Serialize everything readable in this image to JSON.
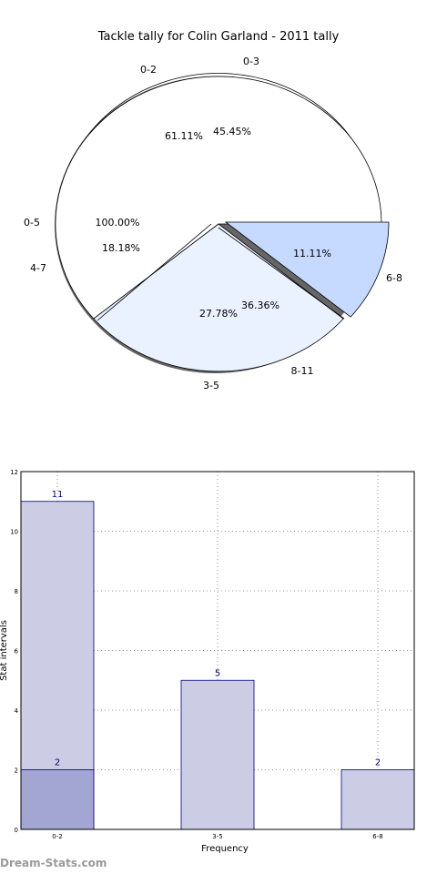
{
  "watermark": "Dream-Stats.com",
  "chart_data": [
    {
      "type": "pie",
      "title": "Tackle tally for Colin Garland - 2011 tally",
      "pies": [
        {
          "slices": [
            {
              "label": "0-2",
              "percent_label": "61.11%",
              "value": 61.11,
              "color": "#ffffff"
            },
            {
              "label": "3-5",
              "percent_label": "27.78%",
              "value": 27.78,
              "color": "#eaf1ff"
            },
            {
              "label": "6-8",
              "percent_label": "11.11%",
              "value": 11.11,
              "color": "#c6d9ff"
            }
          ]
        },
        {
          "slices": [
            {
              "label": "0-3",
              "percent_label": "45.45%",
              "value": 45.45,
              "color": "#ffffff"
            },
            {
              "label": "4-7",
              "percent_label": "18.18%",
              "value": 18.18,
              "color": "#eaf1ff"
            },
            {
              "label": "8-11",
              "percent_label": "36.36%",
              "value": 36.36,
              "color": "#c6d9ff"
            }
          ]
        },
        {
          "slices": [
            {
              "label": "0-5",
              "percent_label": "100.00%",
              "value": 100.0,
              "color": "#ffffff"
            }
          ]
        }
      ]
    },
    {
      "type": "bar",
      "categories": [
        "0-2",
        "3-5",
        "6-8"
      ],
      "series": [
        {
          "values": [
            11,
            5,
            2
          ],
          "color": "#ccccе4"
        },
        {
          "values": [
            2,
            null,
            null
          ],
          "color": "#a3a5d2"
        }
      ],
      "data_labels": [
        [
          "11",
          "5",
          "2"
        ],
        [
          "2",
          "",
          ""
        ]
      ],
      "xlabel": "Frequency",
      "ylabel": "Stat intervals",
      "ylim": [
        0,
        12
      ],
      "yticks": [
        "0",
        "2",
        "4",
        "6",
        "8",
        "10",
        "12"
      ],
      "grid": true
    }
  ]
}
